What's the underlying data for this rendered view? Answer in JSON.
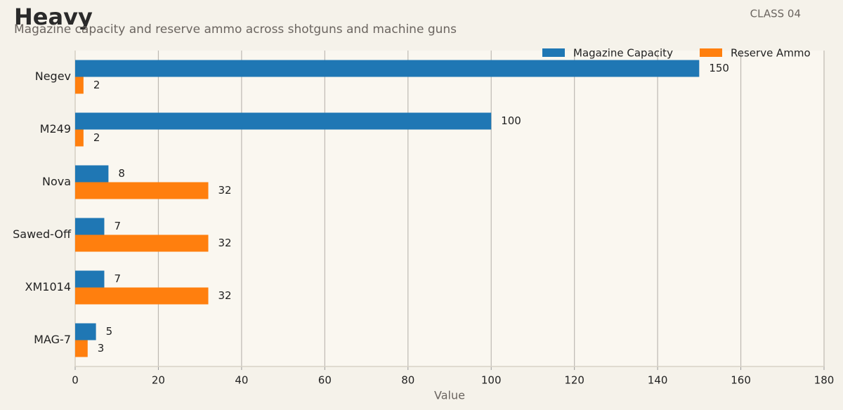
{
  "chart_data": {
    "type": "bar",
    "orientation": "horizontal",
    "title": "Heavy",
    "subtitle": "Magazine capacity and reserve ammo across shotguns and machine guns",
    "badge": "CLASS 04",
    "xlabel": "Value",
    "categories": [
      "Negev",
      "M249",
      "Nova",
      "Sawed-Off",
      "XM1014",
      "MAG-7"
    ],
    "series": [
      {
        "name": "Magazine Capacity",
        "color": "#1f77b4",
        "values": [
          150,
          100,
          8,
          7,
          7,
          5
        ]
      },
      {
        "name": "Reserve Ammo",
        "color": "#ff7f0e",
        "values": [
          2,
          2,
          32,
          32,
          32,
          3
        ]
      }
    ],
    "xlim": [
      0,
      180
    ],
    "xticks": [
      0,
      20,
      40,
      60,
      80,
      100,
      120,
      140,
      160,
      180
    ],
    "grid": true,
    "legend": "top-right"
  }
}
